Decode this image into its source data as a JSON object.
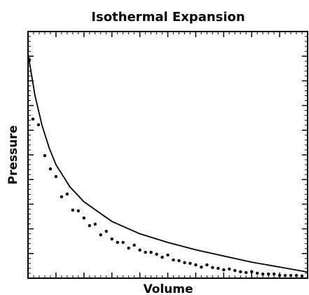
{
  "chart_data": {
    "type": "scatter",
    "title": "Isothermal Expansion",
    "x_label": "Volume",
    "y_label": "Pressure",
    "xlim": [
      0,
      100
    ],
    "ylim": [
      0,
      100
    ],
    "xticks": [
      0,
      10,
      20,
      30,
      40,
      50,
      60,
      70,
      80,
      90,
      100
    ],
    "yticks": [
      0,
      10,
      20,
      30,
      40,
      50,
      60,
      70,
      80,
      90,
      100
    ],
    "minor_divisions": 5,
    "series": [
      {
        "mode": "markers",
        "color": "#000000",
        "x": [
          0.5,
          1.75,
          3.75,
          6,
          8,
          10,
          12,
          14,
          16,
          18,
          20,
          22,
          24,
          26,
          28,
          30,
          32,
          34,
          36,
          38,
          40,
          42,
          44,
          46,
          48,
          50,
          52,
          54,
          56,
          58,
          60,
          62,
          64,
          66,
          68,
          70,
          72,
          74,
          76,
          78,
          80,
          82,
          84,
          86,
          88,
          90,
          92,
          94,
          96,
          98
        ],
        "values": [
          88.6,
          64.5,
          62.2,
          49.7,
          44.3,
          41.2,
          33,
          34.1,
          27.6,
          27.3,
          24.4,
          21.3,
          21.9,
          17.6,
          19,
          15.9,
          14.5,
          14.5,
          12.2,
          13.4,
          11.4,
          10.5,
          10.5,
          9.7,
          8.5,
          9.4,
          7.4,
          7.1,
          6.3,
          6,
          5.4,
          4.5,
          5.4,
          4.3,
          4,
          3.4,
          3.7,
          3.1,
          2.6,
          2.3,
          2.6,
          2,
          1.7,
          1.7,
          1.7,
          1.1,
          1.1,
          1.1,
          1.1,
          0.9
        ]
      },
      {
        "mode": "line",
        "color": "#000000",
        "x": [
          0,
          2.5,
          5,
          7.5,
          10,
          15,
          20,
          30,
          40,
          50,
          60,
          70,
          80,
          90,
          100
        ],
        "values": [
          91,
          74,
          62,
          53,
          46,
          37,
          31,
          23,
          18,
          14.5,
          11.5,
          9,
          6.5,
          4.5,
          2.5
        ]
      }
    ]
  }
}
